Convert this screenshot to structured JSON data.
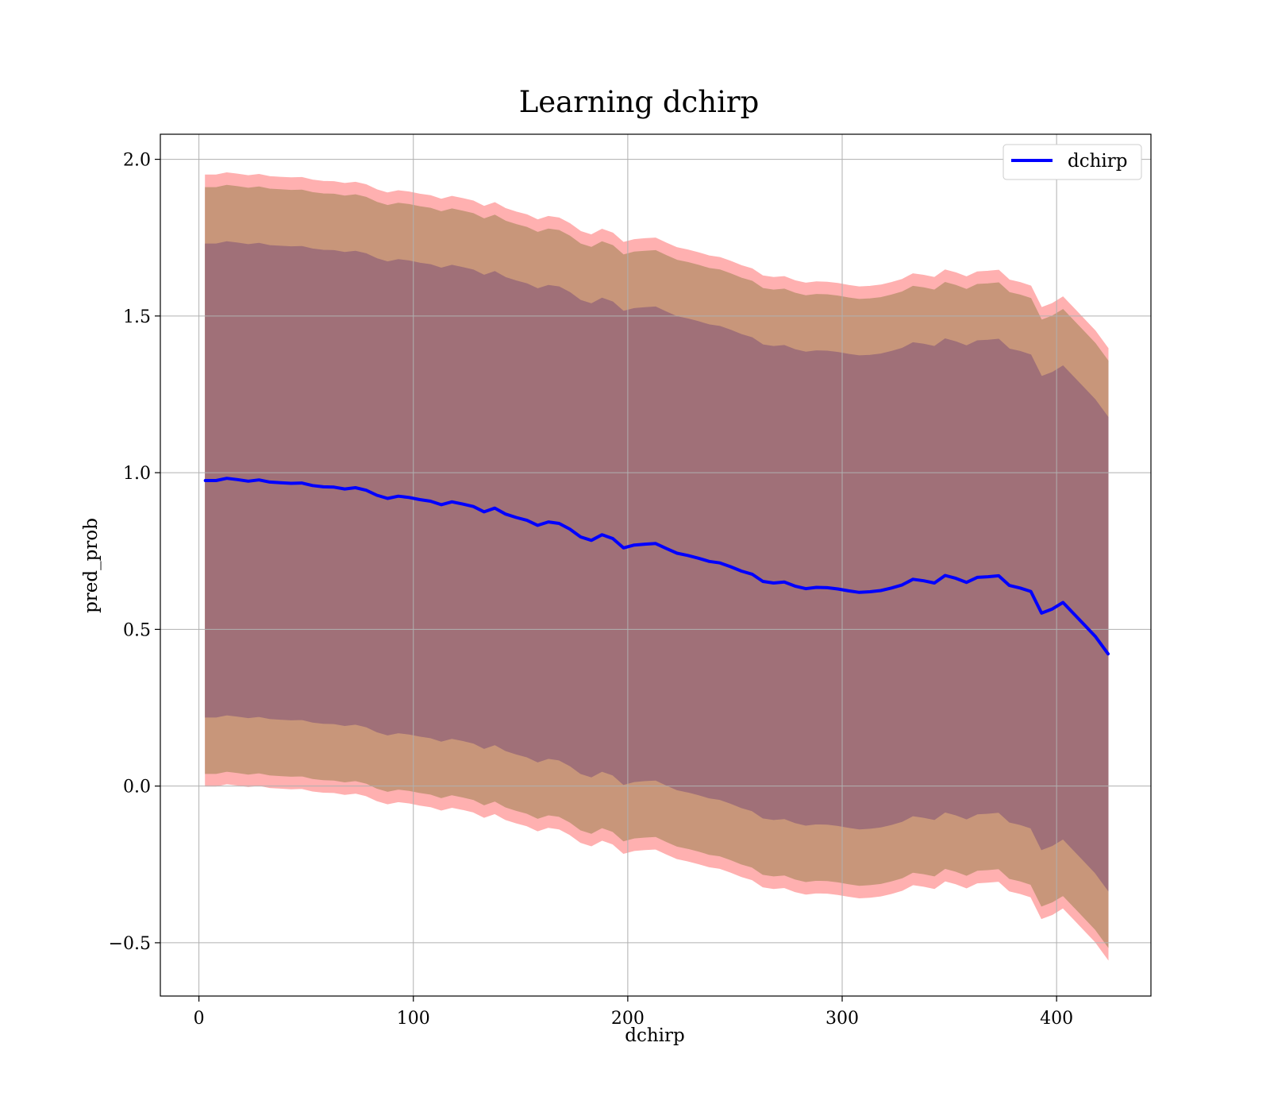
{
  "chart_data": {
    "type": "line",
    "title": "Learning dchirp",
    "xlabel": "dchirp",
    "ylabel": "pred_prob",
    "xlim": [
      -18,
      444
    ],
    "ylim": [
      -0.67,
      2.08
    ],
    "xticks": [
      0,
      100,
      200,
      300,
      400
    ],
    "yticks": [
      -0.5,
      0.0,
      0.5,
      1.0,
      1.5,
      2.0
    ],
    "xtick_labels": [
      "0",
      "100",
      "200",
      "300",
      "400"
    ],
    "ytick_labels": [
      "−0.5",
      "0.0",
      "0.5",
      "1.0",
      "1.5",
      "2.0"
    ],
    "grid": true,
    "legend": {
      "position": "top-right",
      "entries": [
        "dchirp"
      ]
    },
    "colors": {
      "line": "#0000ff",
      "band_outer": "#ffb0b0",
      "band_middle": "#c8967a",
      "band_inner": "#a07078"
    },
    "series": [
      {
        "name": "dchirp",
        "x": [
          3,
          8,
          13,
          18,
          23,
          28,
          33,
          38,
          43,
          48,
          53,
          58,
          63,
          68,
          73,
          78,
          83,
          88,
          93,
          98,
          103,
          108,
          113,
          118,
          123,
          128,
          133,
          138,
          143,
          148,
          153,
          158,
          163,
          168,
          173,
          178,
          183,
          188,
          193,
          198,
          203,
          208,
          213,
          218,
          223,
          228,
          233,
          238,
          243,
          248,
          253,
          258,
          263,
          268,
          273,
          278,
          283,
          288,
          293,
          298,
          303,
          308,
          313,
          318,
          323,
          328,
          333,
          338,
          343,
          348,
          353,
          358,
          363,
          368,
          373,
          378,
          383,
          388,
          393,
          398,
          403,
          408,
          413,
          418,
          424
        ],
        "y": [
          0.975,
          0.975,
          0.982,
          0.978,
          0.973,
          0.977,
          0.97,
          0.968,
          0.966,
          0.967,
          0.959,
          0.955,
          0.954,
          0.948,
          0.952,
          0.944,
          0.928,
          0.918,
          0.925,
          0.921,
          0.914,
          0.909,
          0.898,
          0.907,
          0.9,
          0.892,
          0.875,
          0.887,
          0.868,
          0.857,
          0.848,
          0.832,
          0.843,
          0.838,
          0.82,
          0.795,
          0.784,
          0.802,
          0.79,
          0.76,
          0.769,
          0.772,
          0.774,
          0.758,
          0.743,
          0.736,
          0.727,
          0.717,
          0.712,
          0.7,
          0.686,
          0.676,
          0.653,
          0.648,
          0.651,
          0.638,
          0.63,
          0.634,
          0.633,
          0.629,
          0.623,
          0.618,
          0.62,
          0.624,
          0.632,
          0.642,
          0.66,
          0.655,
          0.648,
          0.672,
          0.663,
          0.65,
          0.666,
          0.668,
          0.671,
          0.64,
          0.632,
          0.621,
          0.552,
          0.565,
          0.586,
          0.55,
          0.514,
          0.478,
          0.422
        ]
      }
    ],
    "bands": {
      "outer": {
        "offset": 0.975
      },
      "middle": {
        "offset": 0.935
      },
      "inner": {
        "offset": 0.755
      }
    }
  }
}
